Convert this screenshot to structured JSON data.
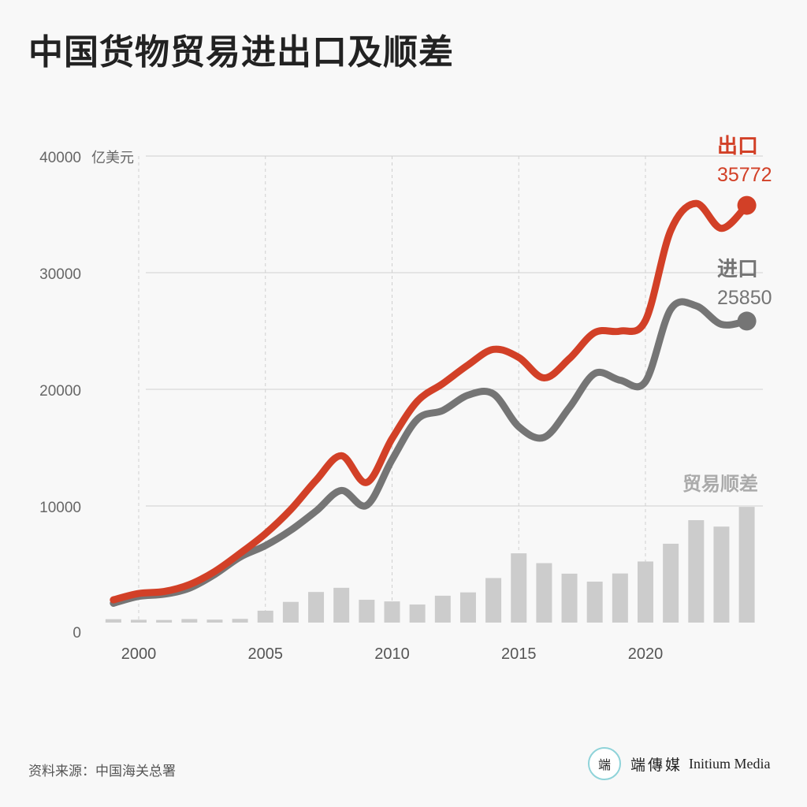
{
  "title": "中国货物贸易进出口及顺差",
  "source": "资料来源：中国海关总署",
  "logo": {
    "icon": "端",
    "cn": "端傳媒",
    "en": "Initium Media"
  },
  "colors": {
    "export": "#d24027",
    "import": "#757575",
    "surplus": "#cccccc"
  },
  "chart_data": {
    "type": "line",
    "unit": "亿美元",
    "x_ticks": [
      2000,
      2005,
      2010,
      2015,
      2020
    ],
    "y_ticks": [
      0,
      10000,
      20000,
      30000,
      40000
    ],
    "xlim": [
      1998.6,
      2025.0
    ],
    "ylim": [
      0,
      40000
    ],
    "grid": true,
    "years": [
      1999,
      2000,
      2001,
      2002,
      2003,
      2004,
      2005,
      2006,
      2007,
      2008,
      2009,
      2010,
      2011,
      2012,
      2013,
      2014,
      2015,
      2016,
      2017,
      2018,
      2019,
      2020,
      2021,
      2022,
      2023,
      2024
    ],
    "series": [
      {
        "name": "出口",
        "key": "export",
        "end_value_label": "35772",
        "values": [
          1949,
          2492,
          2661,
          3256,
          4382,
          5933,
          7620,
          9689,
          12200,
          14307,
          12016,
          15778,
          18984,
          20487,
          22090,
          23423,
          22735,
          20976,
          22633,
          24867,
          24990,
          25900,
          33630,
          35940,
          33800,
          35772
        ]
      },
      {
        "name": "进口",
        "key": "import",
        "end_value_label": "25850",
        "values": [
          1657,
          2251,
          2436,
          2952,
          4128,
          5614,
          6600,
          7916,
          9561,
          11326,
          10059,
          13962,
          17435,
          18184,
          19500,
          19603,
          16796,
          15879,
          18438,
          21357,
          20784,
          20660,
          26870,
          27160,
          25570,
          25850
        ]
      },
      {
        "name": "贸易顺差",
        "type": "bar",
        "key": "surplus",
        "values": [
          292,
          241,
          225,
          304,
          255,
          319,
          1020,
          1775,
          2622,
          2981,
          1957,
          1815,
          1549,
          2303,
          2590,
          3820,
          5939,
          5097,
          4196,
          3509,
          4210,
          5240,
          6760,
          8780,
          8230,
          9922
        ]
      }
    ]
  }
}
